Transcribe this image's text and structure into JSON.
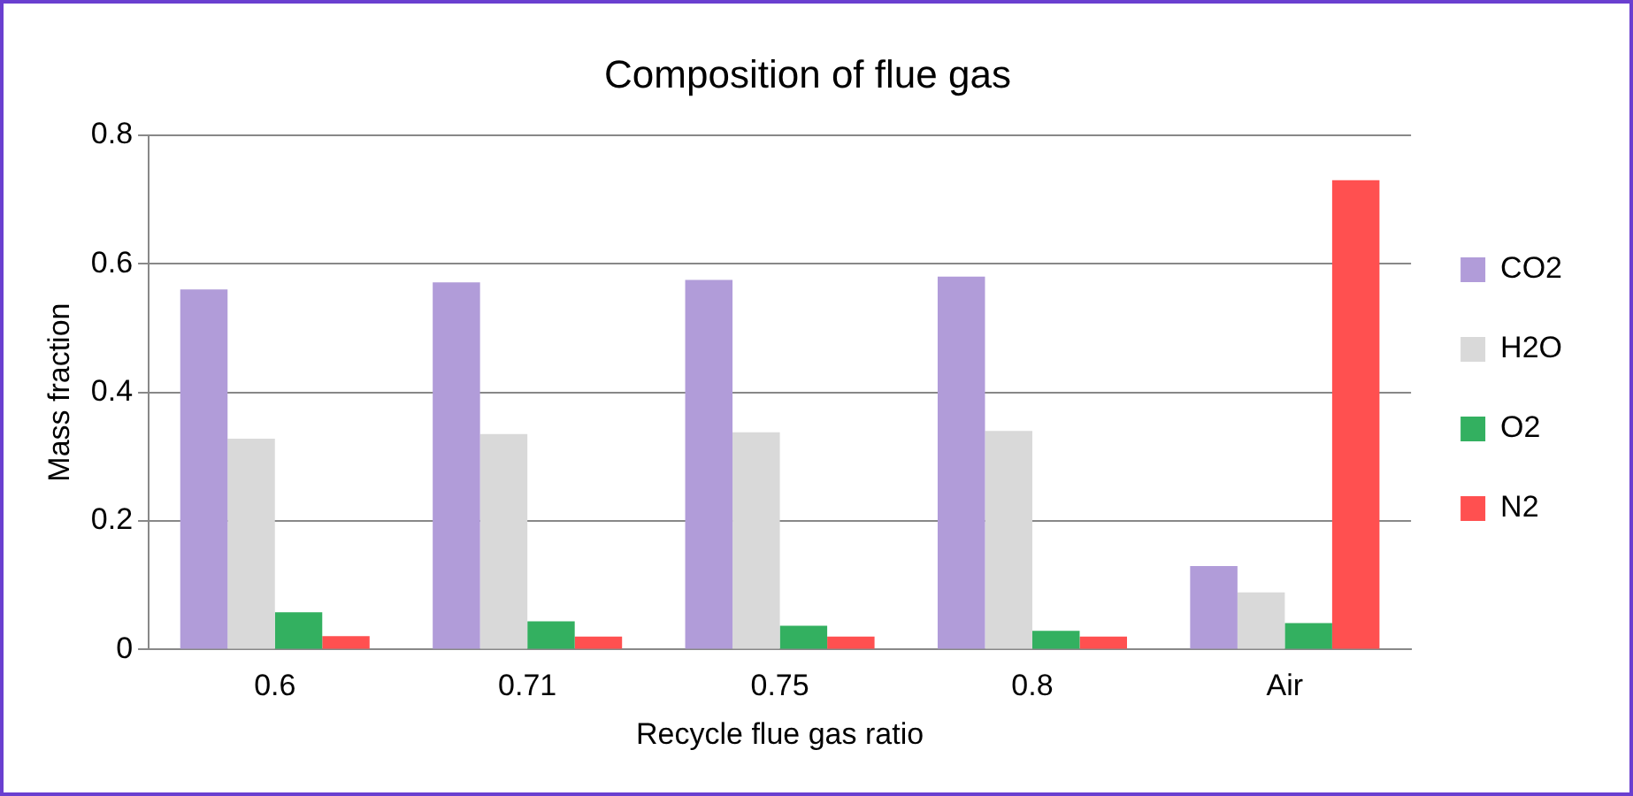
{
  "chart_data": {
    "type": "bar",
    "title": "Composition of flue gas",
    "xlabel": "Recycle flue gas ratio",
    "ylabel": "Mass fraction",
    "categories": [
      "0.6",
      "0.71",
      "0.75",
      "0.8",
      "Air"
    ],
    "series": [
      {
        "name": "CO2",
        "color": "#b19cd9",
        "values": [
          0.56,
          0.571,
          0.575,
          0.58,
          0.13
        ]
      },
      {
        "name": "H2O",
        "color": "#d9d9d9",
        "values": [
          0.328,
          0.335,
          0.338,
          0.34,
          0.089
        ]
      },
      {
        "name": "O2",
        "color": "#33b060",
        "values": [
          0.058,
          0.044,
          0.037,
          0.029,
          0.041
        ]
      },
      {
        "name": "N2",
        "color": "#ff5050",
        "values": [
          0.021,
          0.02,
          0.02,
          0.02,
          0.73
        ]
      }
    ],
    "ylim": [
      0,
      0.8
    ],
    "yticks": [
      0,
      0.2,
      0.4,
      0.6,
      0.8
    ],
    "grid": "y",
    "legend": "right"
  }
}
